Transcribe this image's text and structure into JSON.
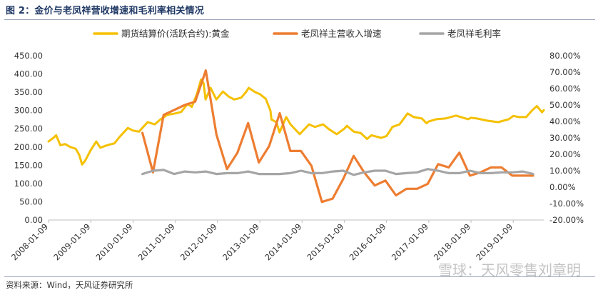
{
  "figure": {
    "title": "图 2：金价与老凤祥营收增速和毛利率相关情况",
    "source": "资料来源：Wind，天风证券研究所",
    "watermark": "雪球：天风零售刘章明"
  },
  "chart_data": {
    "type": "line",
    "legend_position": "top",
    "grid": false,
    "colors": {
      "gold": "#f5c000",
      "revenue": "#ed7d31",
      "margin": "#a5a5a5"
    },
    "x_ticks": [
      "2008-01-09",
      "2009-01-09",
      "2010-01-09",
      "2011-01-09",
      "2012-01-09",
      "2013-01-09",
      "2014-01-09",
      "2015-01-09",
      "2016-01-09",
      "2017-01-09",
      "2018-01-09",
      "2019-01-09"
    ],
    "x_range": [
      "2008-01-09",
      "2019-09-30"
    ],
    "y_left": {
      "range": [
        0,
        450
      ],
      "ticks": [
        "0.00",
        "50.00",
        "100.00",
        "150.00",
        "200.00",
        "250.00",
        "300.00",
        "350.00",
        "400.00",
        "450.00"
      ]
    },
    "y_right": {
      "range": [
        -0.2,
        0.8
      ],
      "ticks": [
        "-20.00%",
        "-10.00%",
        "0.00%",
        "10.00%",
        "20.00%",
        "30.00%",
        "40.00%",
        "50.00%",
        "60.00%",
        "70.00%",
        "80.00%"
      ]
    },
    "series": [
      {
        "name": "期货结算价(活跃合约):黄金",
        "axis": "left",
        "points": [
          [
            "2008-01-09",
            215
          ],
          [
            "2008-02-20",
            225
          ],
          [
            "2008-03-15",
            232
          ],
          [
            "2008-04-20",
            205
          ],
          [
            "2008-06-01",
            208
          ],
          [
            "2008-07-15",
            200
          ],
          [
            "2008-09-01",
            195
          ],
          [
            "2008-10-01",
            178
          ],
          [
            "2008-10-25",
            152
          ],
          [
            "2008-11-20",
            162
          ],
          [
            "2009-01-09",
            192
          ],
          [
            "2009-02-25",
            215
          ],
          [
            "2009-04-01",
            198
          ],
          [
            "2009-06-01",
            205
          ],
          [
            "2009-08-01",
            210
          ],
          [
            "2009-09-15",
            228
          ],
          [
            "2009-11-25",
            252
          ],
          [
            "2010-01-09",
            245
          ],
          [
            "2010-03-01",
            242
          ],
          [
            "2010-05-15",
            268
          ],
          [
            "2010-07-15",
            262
          ],
          [
            "2010-09-01",
            275
          ],
          [
            "2010-11-01",
            288
          ],
          [
            "2011-01-09",
            292
          ],
          [
            "2011-03-01",
            296
          ],
          [
            "2011-04-25",
            318
          ],
          [
            "2011-06-01",
            310
          ],
          [
            "2011-07-15",
            345
          ],
          [
            "2011-08-20",
            385
          ],
          [
            "2011-09-10",
            375
          ],
          [
            "2011-09-28",
            330
          ],
          [
            "2011-11-10",
            362
          ],
          [
            "2011-12-30",
            330
          ],
          [
            "2012-02-25",
            352
          ],
          [
            "2012-04-15",
            338
          ],
          [
            "2012-06-01",
            330
          ],
          [
            "2012-08-01",
            335
          ],
          [
            "2012-09-15",
            352
          ],
          [
            "2012-10-05",
            362
          ],
          [
            "2012-12-01",
            350
          ],
          [
            "2013-01-09",
            345
          ],
          [
            "2013-03-01",
            332
          ],
          [
            "2013-04-10",
            300
          ],
          [
            "2013-04-20",
            275
          ],
          [
            "2013-06-01",
            268
          ],
          [
            "2013-06-28",
            240
          ],
          [
            "2013-08-25",
            282
          ],
          [
            "2013-10-01",
            262
          ],
          [
            "2013-12-20",
            235
          ],
          [
            "2014-03-10",
            262
          ],
          [
            "2014-05-01",
            255
          ],
          [
            "2014-07-10",
            262
          ],
          [
            "2014-09-01",
            248
          ],
          [
            "2014-11-05",
            235
          ],
          [
            "2015-01-09",
            250
          ],
          [
            "2015-02-01",
            258
          ],
          [
            "2015-04-01",
            242
          ],
          [
            "2015-06-01",
            238
          ],
          [
            "2015-07-25",
            222
          ],
          [
            "2015-09-01",
            232
          ],
          [
            "2015-11-25",
            225
          ],
          [
            "2016-01-09",
            230
          ],
          [
            "2016-03-01",
            255
          ],
          [
            "2016-05-01",
            262
          ],
          [
            "2016-07-10",
            292
          ],
          [
            "2016-09-01",
            282
          ],
          [
            "2016-11-10",
            278
          ],
          [
            "2016-12-20",
            265
          ],
          [
            "2017-01-09",
            270
          ],
          [
            "2017-03-15",
            276
          ],
          [
            "2017-06-01",
            278
          ],
          [
            "2017-09-01",
            286
          ],
          [
            "2017-12-15",
            276
          ],
          [
            "2018-01-09",
            280
          ],
          [
            "2018-03-01",
            278
          ],
          [
            "2018-06-01",
            272
          ],
          [
            "2018-09-01",
            268
          ],
          [
            "2018-12-01",
            276
          ],
          [
            "2019-01-09",
            285
          ],
          [
            "2019-03-01",
            282
          ],
          [
            "2019-05-01",
            282
          ],
          [
            "2019-06-20",
            300
          ],
          [
            "2019-08-01",
            312
          ],
          [
            "2019-09-15",
            295
          ],
          [
            "2019-09-30",
            301
          ]
        ]
      },
      {
        "name": "老凤祥主营收入增速",
        "axis": "right",
        "points": [
          [
            "2010-03-31",
            0.33
          ],
          [
            "2010-06-30",
            0.09
          ],
          [
            "2010-09-30",
            0.44
          ],
          [
            "2010-12-31",
            0.47
          ],
          [
            "2011-03-31",
            0.5
          ],
          [
            "2011-06-30",
            0.52
          ],
          [
            "2011-09-30",
            0.71
          ],
          [
            "2011-12-31",
            0.32
          ],
          [
            "2012-03-31",
            0.11
          ],
          [
            "2012-06-30",
            0.21
          ],
          [
            "2012-09-30",
            0.39
          ],
          [
            "2012-12-31",
            0.15
          ],
          [
            "2013-03-31",
            0.25
          ],
          [
            "2013-06-30",
            0.45
          ],
          [
            "2013-09-30",
            0.22
          ],
          [
            "2013-12-31",
            0.22
          ],
          [
            "2014-03-31",
            0.13
          ],
          [
            "2014-06-30",
            -0.09
          ],
          [
            "2014-09-30",
            -0.07
          ],
          [
            "2014-12-31",
            0.05
          ],
          [
            "2015-03-31",
            0.19
          ],
          [
            "2015-06-30",
            0.09
          ],
          [
            "2015-09-30",
            0.01
          ],
          [
            "2015-12-31",
            0.04
          ],
          [
            "2016-03-31",
            -0.05
          ],
          [
            "2016-06-30",
            -0.01
          ],
          [
            "2016-09-30",
            -0.01
          ],
          [
            "2016-12-31",
            0.02
          ],
          [
            "2017-03-31",
            0.14
          ],
          [
            "2017-06-30",
            0.12
          ],
          [
            "2017-09-30",
            0.21
          ],
          [
            "2017-12-31",
            0.07
          ],
          [
            "2018-03-31",
            0.09
          ],
          [
            "2018-06-30",
            0.12
          ],
          [
            "2018-09-30",
            0.12
          ],
          [
            "2018-12-31",
            0.07
          ],
          [
            "2019-03-31",
            0.07
          ],
          [
            "2019-06-30",
            0.07
          ]
        ]
      },
      {
        "name": "老凤祥毛利率",
        "axis": "right",
        "points": [
          [
            "2010-03-31",
            0.08
          ],
          [
            "2010-06-30",
            0.1
          ],
          [
            "2010-09-30",
            0.105
          ],
          [
            "2010-12-31",
            0.08
          ],
          [
            "2011-03-31",
            0.095
          ],
          [
            "2011-06-30",
            0.09
          ],
          [
            "2011-09-30",
            0.095
          ],
          [
            "2011-12-31",
            0.08
          ],
          [
            "2012-03-31",
            0.085
          ],
          [
            "2012-06-30",
            0.085
          ],
          [
            "2012-09-30",
            0.095
          ],
          [
            "2012-12-31",
            0.08
          ],
          [
            "2013-03-31",
            0.08
          ],
          [
            "2013-06-30",
            0.08
          ],
          [
            "2013-09-30",
            0.085
          ],
          [
            "2013-12-31",
            0.1
          ],
          [
            "2014-03-31",
            0.085
          ],
          [
            "2014-06-30",
            0.085
          ],
          [
            "2014-09-30",
            0.095
          ],
          [
            "2014-12-31",
            0.1
          ],
          [
            "2015-03-31",
            0.075
          ],
          [
            "2015-06-30",
            0.09
          ],
          [
            "2015-09-30",
            0.1
          ],
          [
            "2015-12-31",
            0.1
          ],
          [
            "2016-03-31",
            0.08
          ],
          [
            "2016-06-30",
            0.085
          ],
          [
            "2016-09-30",
            0.09
          ],
          [
            "2016-12-31",
            0.11
          ],
          [
            "2017-03-31",
            0.1
          ],
          [
            "2017-06-30",
            0.085
          ],
          [
            "2017-09-30",
            0.085
          ],
          [
            "2017-12-31",
            0.1
          ],
          [
            "2018-03-31",
            0.085
          ],
          [
            "2018-06-30",
            0.085
          ],
          [
            "2018-09-30",
            0.09
          ],
          [
            "2018-12-31",
            0.09
          ],
          [
            "2019-03-31",
            0.095
          ],
          [
            "2019-06-30",
            0.08
          ]
        ]
      }
    ]
  }
}
